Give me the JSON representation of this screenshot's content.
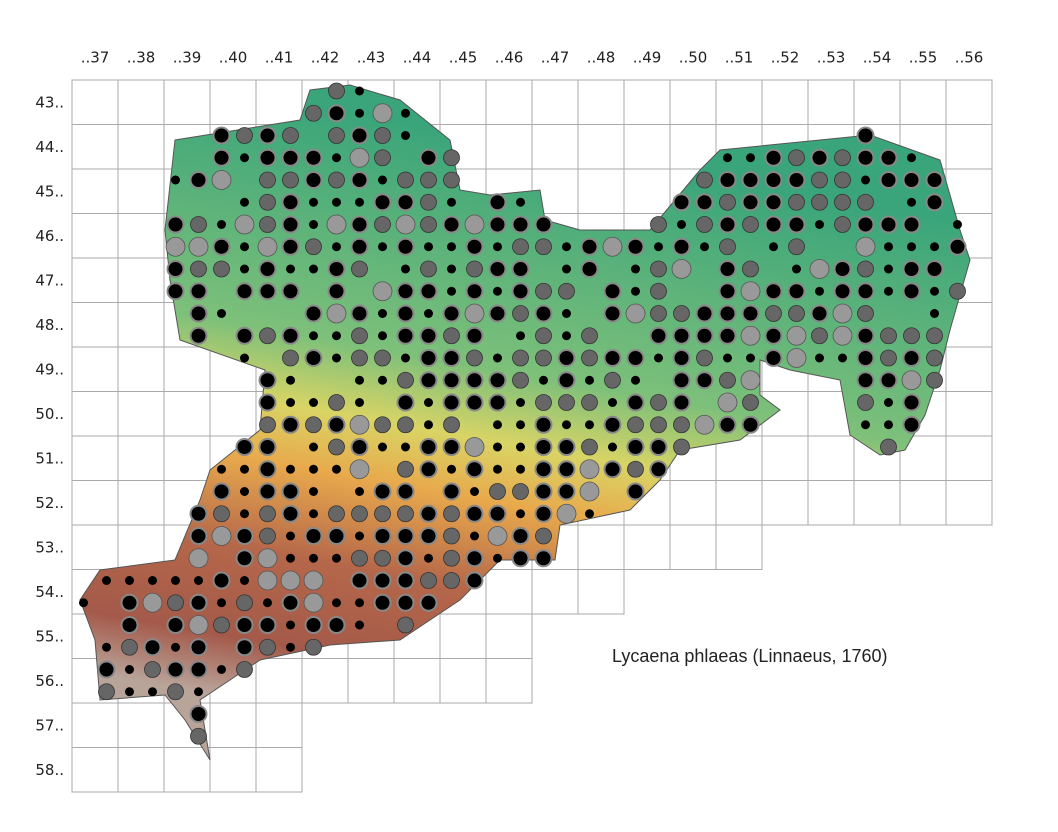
{
  "columns": [
    "..37",
    "..38",
    "..39",
    "..40",
    "..41",
    "..42",
    "..43",
    "..44",
    "..45",
    "..46",
    "..47",
    "..48",
    "..49",
    "..50",
    "..51",
    "..52",
    "..53",
    "..54",
    "..55",
    "..56"
  ],
  "rows": [
    "43..",
    "44..",
    "45..",
    "46..",
    "47..",
    "48..",
    "49..",
    "50..",
    "51..",
    "52..",
    "53..",
    "54..",
    "55..",
    "56..",
    "57..",
    "58.."
  ],
  "species": "Lycaena phlaeas (Linnaeus, 1760)"
}
